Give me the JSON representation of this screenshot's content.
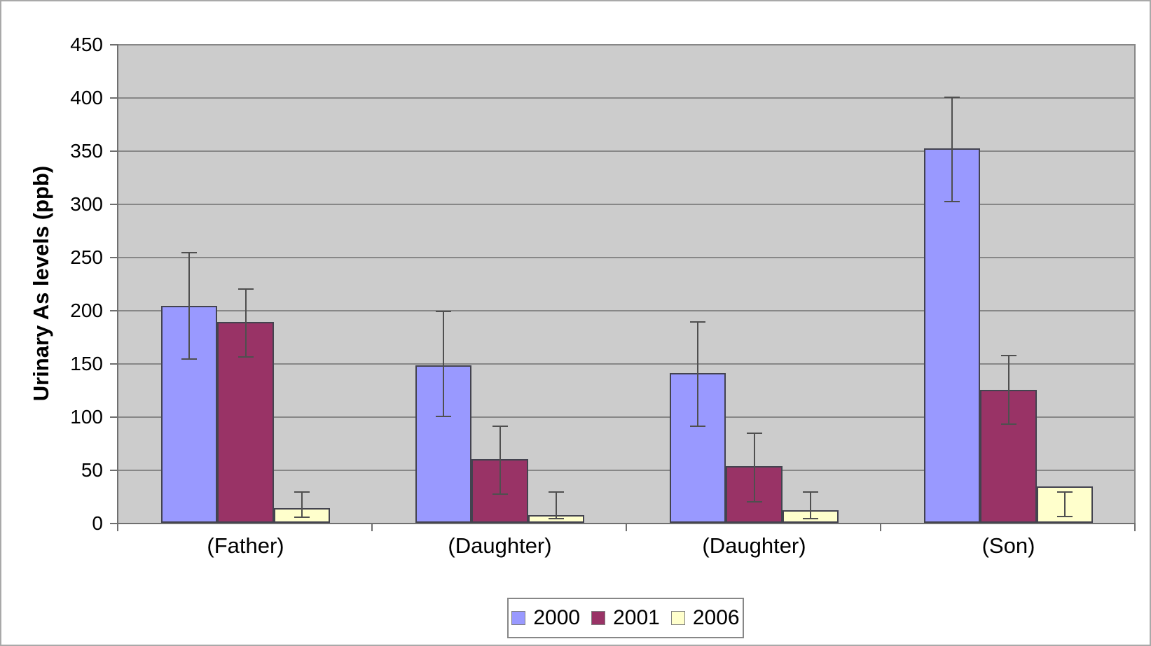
{
  "chart_data": {
    "type": "bar",
    "title": "",
    "xlabel": "",
    "ylabel": "Urinary As levels (ppb)",
    "categories": [
      "(Father)",
      "(Daughter)",
      "(Daughter)",
      "(Son)"
    ],
    "series": [
      {
        "name": "2000",
        "color": "#9999FF",
        "values": [
          204,
          148,
          141,
          352
        ],
        "error_low": [
          154,
          100,
          91,
          302
        ],
        "error_high": [
          254,
          199,
          189,
          400
        ]
      },
      {
        "name": "2001",
        "color": "#993366",
        "values": [
          189,
          60,
          53,
          125
        ],
        "error_low": [
          156,
          27,
          20,
          93
        ],
        "error_high": [
          220,
          91,
          84,
          157
        ]
      },
      {
        "name": "2006",
        "color": "#FFFFCC",
        "values": [
          14,
          7,
          12,
          34
        ],
        "error_low": [
          5,
          4,
          4,
          6
        ],
        "error_high": [
          29,
          29,
          29,
          29
        ]
      }
    ],
    "ylim": [
      0,
      450
    ],
    "ytick_step": 50,
    "yticks": [
      0,
      50,
      100,
      150,
      200,
      250,
      300,
      350,
      400,
      450
    ],
    "grid": true,
    "error_bars": true,
    "legend_position": "bottom",
    "plot_bg_color": "#CCCCCC",
    "gridline_color": "#878787",
    "bar_gap_percent": 150
  }
}
